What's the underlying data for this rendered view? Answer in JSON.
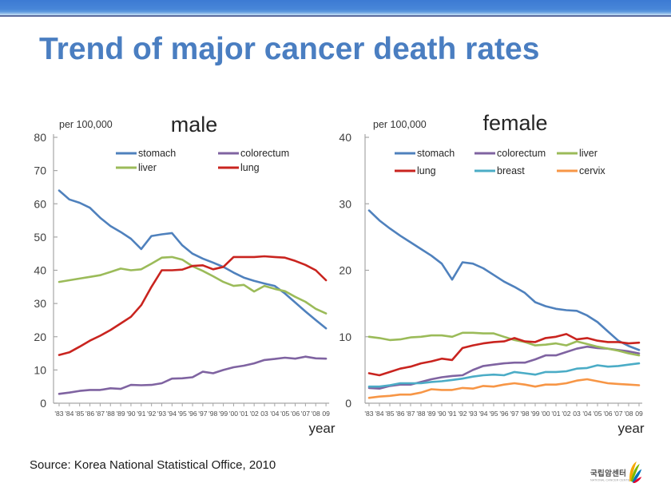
{
  "slide": {
    "title": "Trend of major cancer death rates",
    "source": "Source: Korea National Statistical Office, 2010",
    "accent_color": "#4a7ec1"
  },
  "logo": {
    "korean": "국립암센터",
    "english": "NATIONAL CANCER CENTER",
    "icon_colors": [
      "#f5a800",
      "#7ab800",
      "#0072bc",
      "#e4002b"
    ]
  },
  "chart_data": [
    {
      "type": "line",
      "title": "male",
      "unit_label": "per 100,000",
      "xlabel": "year",
      "ylim": [
        0,
        80
      ],
      "ytick_step": 10,
      "x_labels": [
        "'83",
        "'84",
        "'85",
        "'86",
        "'87",
        "'88",
        "'89",
        "'90",
        "'91",
        "'92",
        "'93",
        "'94",
        "'95",
        "'96",
        "'97",
        "'98",
        "'99",
        "'00",
        "'01",
        "'02",
        "03",
        "'04",
        "'05",
        "'06",
        "'07",
        "'08",
        "09"
      ],
      "series": [
        {
          "name": "stomach",
          "color": "#4f81bd",
          "values": [
            64,
            61.3,
            60.3,
            58.8,
            55.8,
            53.3,
            51.5,
            49.5,
            46.4,
            50.3,
            50.8,
            51.2,
            47.5,
            45,
            43.5,
            42.3,
            41,
            39.3,
            37.8,
            36.8,
            36,
            35.3,
            33,
            30.3,
            27.6,
            25,
            22.5
          ]
        },
        {
          "name": "colorectum",
          "color": "#7f63a1",
          "values": [
            2.8,
            3.2,
            3.7,
            4,
            4,
            4.5,
            4.3,
            5.5,
            5.4,
            5.5,
            6,
            7.4,
            7.5,
            7.8,
            9.5,
            9,
            10,
            10.8,
            11.3,
            12,
            13,
            13.3,
            13.7,
            13.4,
            14,
            13.5,
            13.4
          ]
        },
        {
          "name": "liver",
          "color": "#9bbb59",
          "values": [
            36.5,
            37,
            37.5,
            38,
            38.5,
            39.5,
            40.5,
            40,
            40.3,
            42,
            43.8,
            44,
            43.2,
            41.2,
            39.8,
            38.2,
            36.5,
            35.3,
            35.6,
            33.6,
            35.3,
            34.4,
            33.7,
            32,
            30.5,
            28.4,
            27
          ]
        },
        {
          "name": "lung",
          "color": "#c9241f",
          "values": [
            14.5,
            15.3,
            17,
            18.8,
            20.3,
            22,
            24,
            26,
            29.5,
            35,
            40,
            40,
            40.2,
            41.3,
            41.5,
            40.3,
            41,
            44,
            44,
            44,
            44.2,
            44,
            43.8,
            42.8,
            41.6,
            40,
            37
          ]
        }
      ]
    },
    {
      "type": "line",
      "title": "female",
      "unit_label": "per 100,000",
      "xlabel": "year",
      "ylim": [
        0,
        40
      ],
      "ytick_step": 10,
      "x_labels": [
        "'83",
        "'84",
        "'85",
        "'86",
        "'87",
        "'88",
        "'89",
        "'90",
        "'91",
        "'92",
        "'93",
        "'94",
        "'95",
        "'96",
        "'97",
        "'98",
        "'99",
        "'00",
        "'01",
        "'02",
        "03",
        "'04",
        "'05",
        "'06",
        "'07",
        "'08",
        "09"
      ],
      "series": [
        {
          "name": "stomach",
          "color": "#4f81bd",
          "values": [
            29,
            27.5,
            26.3,
            25.2,
            24.2,
            23.2,
            22.2,
            21,
            18.6,
            21.2,
            21,
            20.3,
            19.3,
            18.3,
            17.5,
            16.6,
            15.2,
            14.6,
            14.2,
            14,
            13.9,
            13.2,
            12.2,
            10.8,
            9.4,
            8.6,
            8
          ]
        },
        {
          "name": "colorectum",
          "color": "#7f63a1",
          "values": [
            2.3,
            2.2,
            2.6,
            2.8,
            2.8,
            3.2,
            3.6,
            3.9,
            4.1,
            4.2,
            5,
            5.6,
            5.8,
            6,
            6.1,
            6.1,
            6.6,
            7.2,
            7.2,
            7.7,
            8.2,
            8.5,
            8.3,
            8.2,
            8,
            7.8,
            7.5
          ]
        },
        {
          "name": "liver",
          "color": "#9bbb59",
          "values": [
            10,
            9.8,
            9.5,
            9.6,
            9.9,
            10,
            10.2,
            10.2,
            10,
            10.6,
            10.6,
            10.5,
            10.5,
            10,
            9.5,
            9.2,
            8.7,
            8.8,
            9,
            8.7,
            9.3,
            8.9,
            8.5,
            8.2,
            7.9,
            7.5,
            7.2
          ]
        },
        {
          "name": "lung",
          "color": "#c9241f",
          "values": [
            4.5,
            4.2,
            4.7,
            5.2,
            5.5,
            6,
            6.3,
            6.7,
            6.5,
            8.3,
            8.7,
            9,
            9.2,
            9.3,
            9.8,
            9.3,
            9.2,
            9.8,
            10,
            10.4,
            9.6,
            9.8,
            9.4,
            9.2,
            9.2,
            9,
            9.1
          ]
        },
        {
          "name": "breast",
          "color": "#4bacc6",
          "values": [
            2.5,
            2.5,
            2.7,
            3,
            3,
            3,
            3.2,
            3.3,
            3.5,
            3.7,
            4,
            4.2,
            4.3,
            4.2,
            4.7,
            4.5,
            4.3,
            4.7,
            4.7,
            4.8,
            5.2,
            5.3,
            5.7,
            5.5,
            5.6,
            5.8,
            6
          ]
        },
        {
          "name": "cervix",
          "color": "#f79646",
          "values": [
            0.8,
            1,
            1.1,
            1.3,
            1.3,
            1.6,
            2.1,
            2,
            2,
            2.3,
            2.2,
            2.6,
            2.5,
            2.8,
            3,
            2.8,
            2.5,
            2.8,
            2.8,
            3,
            3.4,
            3.6,
            3.3,
            3,
            2.9,
            2.8,
            2.7
          ]
        }
      ]
    }
  ]
}
